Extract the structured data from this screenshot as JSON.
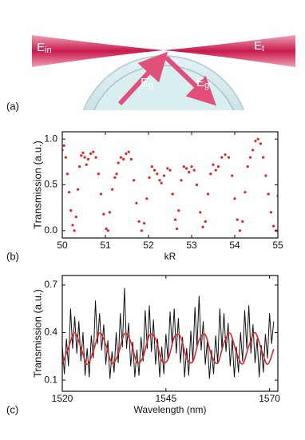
{
  "figure": {
    "panel_a": {
      "label": "(a)",
      "beam_labels": [
        {
          "text": "E",
          "sub": "in"
        },
        {
          "text": "E",
          "sub": "t"
        },
        {
          "text": "E",
          "sub": "g'"
        },
        {
          "text": "E",
          "sub": "g"
        }
      ]
    }
  },
  "chart_data": [
    {
      "type": "scatter",
      "panel_label": "(b)",
      "xlabel": "kR",
      "ylabel": "Transmission (a.u.)",
      "xlim": [
        50,
        55
      ],
      "xticks": [
        50,
        51,
        52,
        53,
        54,
        55
      ],
      "ylim": [
        -0.08,
        1.08
      ],
      "yticks": [
        {
          "value": 0,
          "label": "0.0"
        },
        {
          "value": 0.5,
          "label": "0.5"
        },
        {
          "value": 1,
          "label": "1.0"
        }
      ],
      "series": [
        {
          "color": "#e32222",
          "x": [
            50.0,
            50.04,
            50.08,
            50.12,
            50.16,
            50.2,
            50.24,
            50.28,
            50.32,
            50.36,
            50.4,
            50.44,
            50.48,
            50.52,
            50.56,
            50.6,
            50.66,
            50.72,
            50.78,
            50.84,
            50.9,
            50.96,
            51.02,
            51.06,
            51.1,
            51.16,
            51.22,
            51.26,
            51.3,
            51.36,
            51.42,
            51.48,
            51.54,
            51.6,
            51.66,
            51.72,
            51.78,
            51.84,
            51.9,
            51.96,
            52.02,
            52.08,
            52.14,
            52.2,
            52.26,
            52.3,
            52.36,
            52.44,
            52.5,
            52.56,
            52.62,
            52.66,
            52.7,
            52.76,
            52.82,
            52.88,
            52.94,
            53.0,
            53.06,
            53.12,
            53.2,
            53.26,
            53.32,
            53.38,
            53.44,
            53.5,
            53.56,
            53.62,
            53.7,
            53.78,
            53.86,
            53.94,
            54.0,
            54.06,
            54.12,
            54.18,
            54.24,
            54.3,
            54.36,
            54.42,
            54.48,
            54.54,
            54.6,
            54.66,
            54.72,
            54.78,
            54.84,
            54.9,
            54.96,
            55.0
          ],
          "values": [
            0.88,
            0.93,
            0.8,
            0.62,
            0.42,
            0.22,
            0.06,
            0.0,
            0.15,
            0.45,
            0.7,
            0.82,
            0.85,
            0.8,
            0.72,
            0.78,
            0.84,
            0.86,
            0.8,
            0.62,
            0.4,
            0.18,
            0.02,
            0.0,
            0.2,
            0.45,
            0.58,
            0.62,
            0.74,
            0.8,
            0.78,
            0.84,
            0.86,
            0.78,
            0.55,
            0.3,
            0.1,
            0.0,
            0.08,
            0.35,
            0.58,
            0.7,
            0.66,
            0.62,
            0.55,
            0.52,
            0.6,
            0.68,
            0.66,
            0.4,
            0.12,
            0.02,
            0.22,
            0.55,
            0.7,
            0.68,
            0.64,
            0.7,
            0.66,
            0.5,
            0.2,
            0.04,
            0.1,
            0.4,
            0.62,
            0.72,
            0.66,
            0.7,
            0.8,
            0.83,
            0.8,
            0.6,
            0.35,
            0.12,
            0.0,
            0.1,
            0.42,
            0.7,
            0.8,
            0.88,
            0.98,
            1.0,
            0.95,
            0.8,
            0.6,
            0.4,
            0.2,
            0.05,
            0.0,
            0.38
          ]
        }
      ]
    },
    {
      "type": "line",
      "panel_label": "(c)",
      "xlabel": "Wavelength (nm)",
      "ylabel": "Transmission (a.u.)",
      "xlim": [
        1520,
        1572
      ],
      "xticks": [
        1520,
        1545,
        1570
      ],
      "ylim": [
        0.03,
        0.76
      ],
      "yticks": [
        0.1,
        0.4,
        0.7
      ],
      "series": [
        {
          "color": "#111111",
          "x": [
            1520,
            1520.5,
            1521,
            1521.5,
            1522,
            1522.5,
            1523,
            1523.5,
            1524,
            1524.5,
            1525,
            1525.5,
            1526,
            1526.5,
            1527,
            1527.5,
            1528,
            1528.5,
            1529,
            1529.5,
            1530,
            1530.5,
            1531,
            1531.5,
            1532,
            1532.5,
            1533,
            1533.5,
            1534,
            1534.5,
            1535,
            1535.5,
            1536,
            1536.5,
            1537,
            1537.5,
            1538,
            1538.5,
            1539,
            1539.5,
            1540,
            1540.5,
            1541,
            1541.5,
            1542,
            1542.5,
            1543,
            1543.5,
            1544,
            1544.5,
            1545,
            1545.5,
            1546,
            1546.5,
            1547,
            1547.5,
            1548,
            1548.5,
            1549,
            1549.5,
            1550,
            1550.5,
            1551,
            1551.5,
            1552,
            1552.5,
            1553,
            1553.5,
            1554,
            1554.5,
            1555,
            1555.5,
            1556,
            1556.5,
            1557,
            1557.5,
            1558,
            1558.5,
            1559,
            1559.5,
            1560,
            1560.5,
            1561,
            1561.5,
            1562,
            1562.5,
            1563,
            1563.5,
            1564,
            1564.5,
            1565,
            1565.5,
            1566,
            1566.5,
            1567,
            1567.5,
            1568,
            1568.5,
            1569,
            1569.5,
            1570,
            1570.5,
            1571
          ],
          "values": [
            0.32,
            0.14,
            0.36,
            0.19,
            0.55,
            0.3,
            0.5,
            0.27,
            0.47,
            0.22,
            0.4,
            0.13,
            0.3,
            0.12,
            0.38,
            0.24,
            0.6,
            0.33,
            0.52,
            0.29,
            0.45,
            0.2,
            0.35,
            0.11,
            0.28,
            0.15,
            0.4,
            0.21,
            0.52,
            0.31,
            0.68,
            0.3,
            0.46,
            0.19,
            0.34,
            0.12,
            0.29,
            0.13,
            0.37,
            0.22,
            0.54,
            0.3,
            0.57,
            0.28,
            0.48,
            0.2,
            0.36,
            0.12,
            0.31,
            0.14,
            0.39,
            0.23,
            0.53,
            0.32,
            0.55,
            0.27,
            0.49,
            0.21,
            0.37,
            0.12,
            0.3,
            0.13,
            0.41,
            0.22,
            0.56,
            0.31,
            0.63,
            0.29,
            0.47,
            0.2,
            0.35,
            0.11,
            0.29,
            0.14,
            0.38,
            0.21,
            0.55,
            0.3,
            0.52,
            0.28,
            0.46,
            0.19,
            0.36,
            0.12,
            0.31,
            0.15,
            0.4,
            0.22,
            0.54,
            0.3,
            0.57,
            0.27,
            0.45,
            0.21,
            0.36,
            0.12,
            0.32,
            0.15,
            0.39,
            0.24,
            0.52,
            0.33,
            0.47
          ]
        },
        {
          "color": "#e02424",
          "curve": "smooth",
          "x": [
            1520,
            1521.5,
            1523,
            1524.5,
            1526,
            1527.5,
            1529,
            1530.5,
            1532,
            1533.5,
            1535,
            1536.5,
            1538,
            1539.5,
            1541,
            1542.5,
            1544,
            1545.5,
            1547,
            1548.5,
            1550,
            1551.5,
            1553,
            1554.5,
            1556,
            1557.5,
            1559,
            1560.5,
            1562,
            1563.5,
            1565,
            1566.5,
            1568,
            1569.5,
            1571
          ],
          "values": [
            0.2,
            0.305,
            0.4,
            0.305,
            0.2,
            0.285,
            0.398,
            0.325,
            0.205,
            0.265,
            0.392,
            0.344,
            0.213,
            0.247,
            0.382,
            0.361,
            0.224,
            0.231,
            0.369,
            0.376,
            0.239,
            0.218,
            0.353,
            0.387,
            0.256,
            0.208,
            0.335,
            0.395,
            0.275,
            0.202,
            0.315,
            0.4,
            0.295,
            0.2,
            0.295
          ]
        }
      ]
    }
  ]
}
